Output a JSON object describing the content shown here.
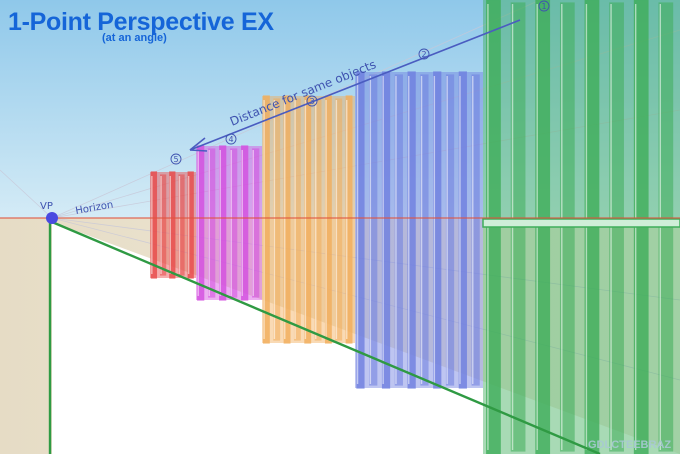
{
  "title": "1-Point Perspective EX",
  "subtitle": "(at an angle)",
  "labels": {
    "vp": "VP",
    "horizon": "Horizon",
    "distance_note": "Distance for same objects",
    "watermark": "GDLCTEEBRAZ"
  },
  "object_numbers": [
    "1",
    "2",
    "3",
    "4",
    "5"
  ],
  "colors": {
    "sky": "#a6d4ee",
    "ground": "#e8dfca",
    "horizon_line": "#e0533f",
    "ground_line": "#2f9a43",
    "title": "#1565d8",
    "vp_dot": "#4a4ae0",
    "column_1": "#3fae5a",
    "column_2": "#6f7fe0",
    "column_3": "#f2ae5c",
    "column_4": "#d44ee0",
    "column_5": "#e84a4a"
  }
}
